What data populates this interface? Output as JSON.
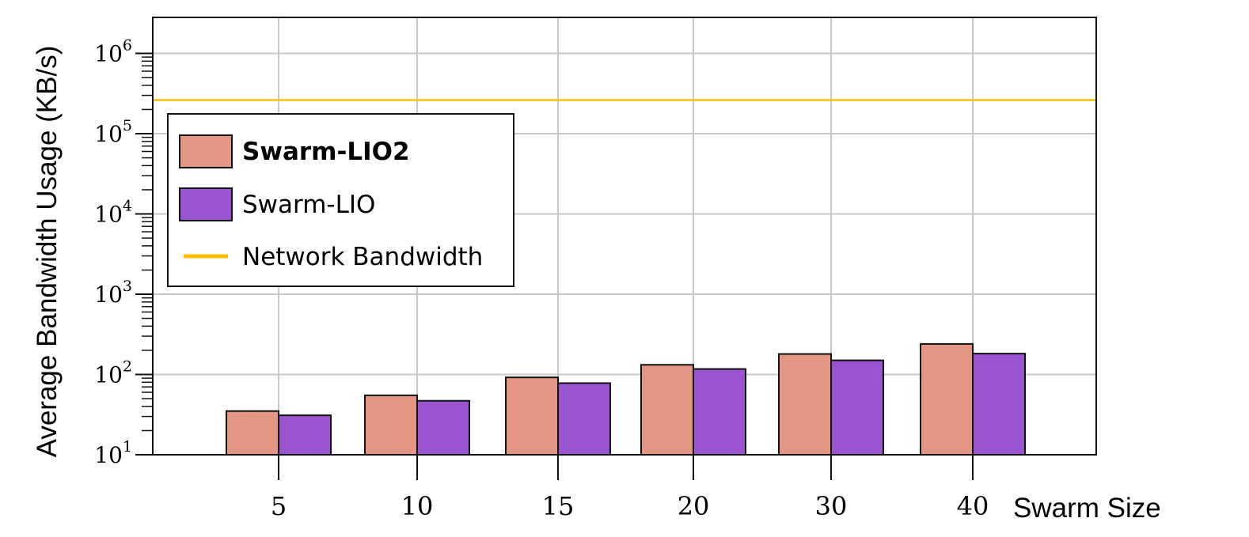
{
  "chart_data": {
    "type": "bar",
    "categories": [
      "5",
      "10",
      "15",
      "20",
      "30",
      "40"
    ],
    "series": [
      {
        "name": "Swarm-LIO2",
        "values": [
          35,
          55,
          92,
          132,
          180,
          240
        ],
        "color": "#e39684"
      },
      {
        "name": "Swarm-LIO",
        "values": [
          31,
          47,
          78,
          117,
          150,
          182
        ],
        "color": "#9955d0"
      }
    ],
    "reference_lines": [
      {
        "name": "Network Bandwidth",
        "value": 262144,
        "color": "#ffbf00"
      }
    ],
    "xlabel": "Swarm Size",
    "ylabel": "Average Bandwidth Usage (KB/s)",
    "y_scale": "log",
    "ylim": [
      10,
      2500000
    ],
    "y_ticks": [
      {
        "base": "10",
        "exp": "1",
        "value": 10
      },
      {
        "base": "10",
        "exp": "2",
        "value": 100
      },
      {
        "base": "10",
        "exp": "3",
        "value": 1000
      },
      {
        "base": "10",
        "exp": "4",
        "value": 10000
      },
      {
        "base": "10",
        "exp": "5",
        "value": 100000
      },
      {
        "base": "10",
        "exp": "6",
        "value": 1000000
      }
    ],
    "grid": true,
    "legend_position": "upper-left",
    "legend_bold": [
      "Swarm-LIO2"
    ]
  }
}
